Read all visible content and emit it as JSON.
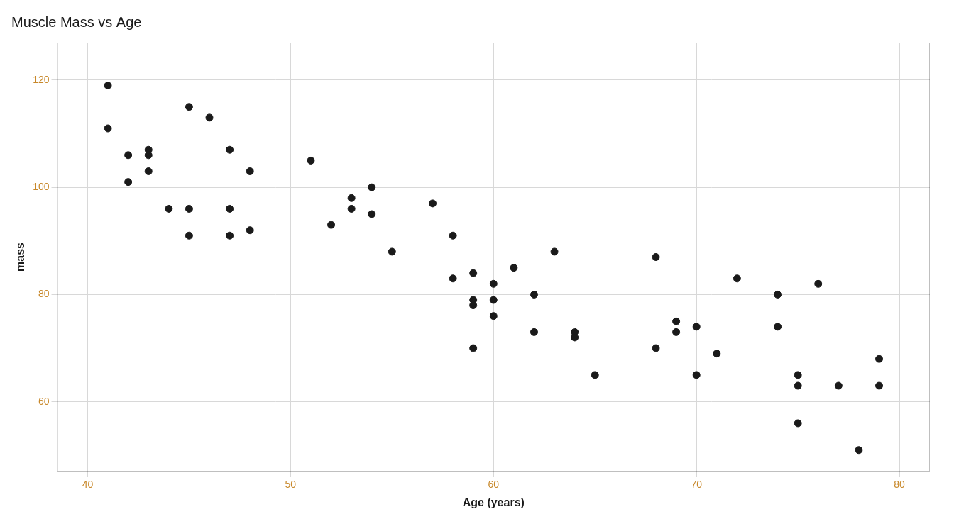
{
  "chart_data": {
    "type": "scatter",
    "title": "Muscle Mass vs Age",
    "xlabel": "Age (years)",
    "ylabel": "mass",
    "xlim": [
      38.5,
      81.5
    ],
    "ylim": [
      47,
      127
    ],
    "xticks": [
      40,
      50,
      60,
      70,
      80
    ],
    "yticks": [
      60,
      80,
      100,
      120
    ],
    "grid": true,
    "color": "#1a1a1a",
    "x": [
      41,
      41,
      42,
      42,
      43,
      43,
      43,
      44,
      45,
      45,
      45,
      46,
      47,
      47,
      47,
      48,
      48,
      51,
      52,
      53,
      53,
      54,
      54,
      55,
      57,
      58,
      58,
      59,
      59,
      59,
      59,
      60,
      60,
      60,
      61,
      62,
      62,
      63,
      64,
      64,
      65,
      68,
      68,
      69,
      69,
      70,
      70,
      71,
      72,
      74,
      74,
      75,
      75,
      75,
      76,
      77,
      78,
      79,
      79
    ],
    "y": [
      119,
      111,
      106,
      101,
      107,
      106,
      103,
      96,
      115,
      96,
      91,
      113,
      107,
      96,
      91,
      103,
      92,
      105,
      93,
      98,
      96,
      100,
      95,
      88,
      97,
      91,
      83,
      84,
      79,
      78,
      70,
      82,
      79,
      76,
      85,
      80,
      73,
      88,
      73,
      72,
      65,
      87,
      70,
      75,
      73,
      74,
      65,
      69,
      83,
      80,
      74,
      65,
      63,
      56,
      82,
      63,
      51,
      63,
      68
    ]
  }
}
